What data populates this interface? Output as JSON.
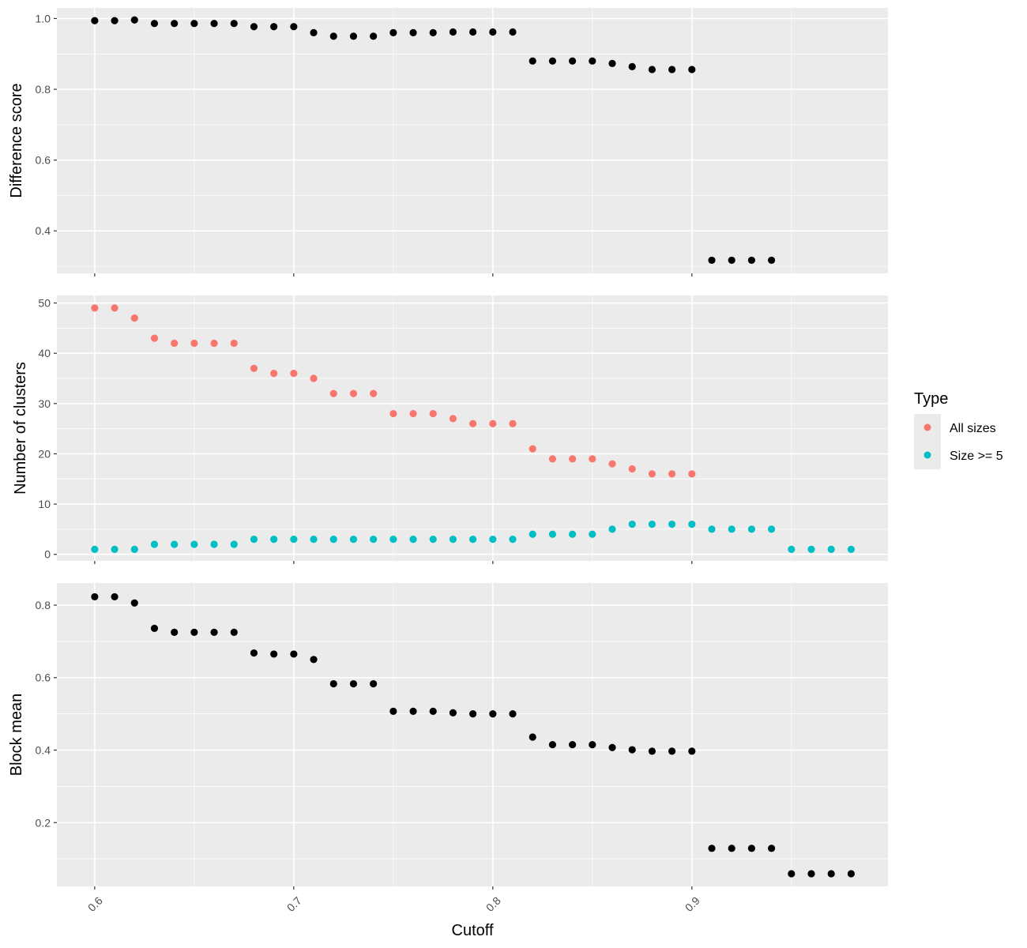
{
  "chart_data": {
    "type": "scatter",
    "facets": 3,
    "xlabel": "Cutoff",
    "x_ticks": [
      "0.6",
      "0.7",
      "0.8",
      "0.9"
    ],
    "x_tick_values": [
      0.6,
      0.7,
      0.8,
      0.9
    ],
    "xlim": [
      0.581,
      0.9985
    ],
    "grid": true,
    "background": "#ebebeb",
    "legend": {
      "title": "Type",
      "placement": "right",
      "entries": [
        {
          "label": "All sizes",
          "color": "#F8766D"
        },
        {
          "label": "Size >= 5",
          "color": "#00BFC4"
        }
      ]
    },
    "panels": [
      {
        "ylabel": "Difference score",
        "ylim": [
          0.28,
          1.03
        ],
        "y_ticks": [
          "0.4",
          "0.6",
          "0.8",
          "1.0"
        ],
        "y_tick_values": [
          0.4,
          0.6,
          0.8,
          1.0
        ],
        "series": [
          {
            "color": "#000000",
            "x": [
              0.6,
              0.61,
              0.62,
              0.63,
              0.64,
              0.65,
              0.66,
              0.67,
              0.68,
              0.69,
              0.7,
              0.71,
              0.72,
              0.73,
              0.74,
              0.75,
              0.76,
              0.77,
              0.78,
              0.79,
              0.8,
              0.81,
              0.82,
              0.83,
              0.84,
              0.85,
              0.86,
              0.87,
              0.88,
              0.89,
              0.9,
              0.91,
              0.92,
              0.93,
              0.94
            ],
            "y": [
              0.994,
              0.994,
              0.996,
              0.986,
              0.986,
              0.986,
              0.986,
              0.986,
              0.977,
              0.977,
              0.977,
              0.96,
              0.95,
              0.95,
              0.95,
              0.96,
              0.96,
              0.96,
              0.962,
              0.962,
              0.962,
              0.962,
              0.88,
              0.88,
              0.88,
              0.88,
              0.873,
              0.864,
              0.856,
              0.856,
              0.856,
              0.317,
              0.317,
              0.317,
              0.317
            ]
          }
        ]
      },
      {
        "ylabel": "Number of clusters",
        "ylim": [
          -1.3,
          51.5
        ],
        "y_ticks": [
          "0",
          "10",
          "20",
          "30",
          "40",
          "50"
        ],
        "y_tick_values": [
          0,
          10,
          20,
          30,
          40,
          50
        ],
        "series": [
          {
            "name": "All sizes",
            "color": "#F8766D",
            "x": [
              0.6,
              0.61,
              0.62,
              0.63,
              0.64,
              0.65,
              0.66,
              0.67,
              0.68,
              0.69,
              0.7,
              0.71,
              0.72,
              0.73,
              0.74,
              0.75,
              0.76,
              0.77,
              0.78,
              0.79,
              0.8,
              0.81,
              0.82,
              0.83,
              0.84,
              0.85,
              0.86,
              0.87,
              0.88,
              0.89,
              0.9
            ],
            "y": [
              49,
              49,
              47,
              43,
              42,
              42,
              42,
              42,
              37,
              36,
              36,
              35,
              32,
              32,
              32,
              28,
              28,
              28,
              27,
              26,
              26,
              26,
              21,
              19,
              19,
              19,
              18,
              17,
              16,
              16,
              16
            ]
          },
          {
            "name": "Size >= 5",
            "color": "#00BFC4",
            "x": [
              0.6,
              0.61,
              0.62,
              0.63,
              0.64,
              0.65,
              0.66,
              0.67,
              0.68,
              0.69,
              0.7,
              0.71,
              0.72,
              0.73,
              0.74,
              0.75,
              0.76,
              0.77,
              0.78,
              0.79,
              0.8,
              0.81,
              0.82,
              0.83,
              0.84,
              0.85,
              0.86,
              0.87,
              0.88,
              0.89,
              0.9,
              0.91,
              0.92,
              0.93,
              0.94,
              0.95,
              0.96,
              0.97,
              0.98
            ],
            "y": [
              1,
              1,
              1,
              2,
              2,
              2,
              2,
              2,
              3,
              3,
              3,
              3,
              3,
              3,
              3,
              3,
              3,
              3,
              3,
              3,
              3,
              3,
              4,
              4,
              4,
              4,
              5,
              6,
              6,
              6,
              6,
              5,
              5,
              5,
              5,
              1,
              1,
              1,
              1
            ]
          }
        ]
      },
      {
        "ylabel": "Block mean",
        "ylim": [
          0.024,
          0.861
        ],
        "y_ticks": [
          "0.2",
          "0.4",
          "0.6",
          "0.8"
        ],
        "y_tick_values": [
          0.2,
          0.4,
          0.6,
          0.8
        ],
        "series": [
          {
            "color": "#000000",
            "x": [
              0.6,
              0.61,
              0.62,
              0.63,
              0.64,
              0.65,
              0.66,
              0.67,
              0.68,
              0.69,
              0.7,
              0.71,
              0.72,
              0.73,
              0.74,
              0.75,
              0.76,
              0.77,
              0.78,
              0.79,
              0.8,
              0.81,
              0.82,
              0.83,
              0.84,
              0.85,
              0.86,
              0.87,
              0.88,
              0.89,
              0.9,
              0.91,
              0.92,
              0.93,
              0.94,
              0.95,
              0.96,
              0.97,
              0.98
            ],
            "y": [
              0.823,
              0.823,
              0.806,
              0.736,
              0.725,
              0.725,
              0.725,
              0.725,
              0.668,
              0.665,
              0.665,
              0.65,
              0.583,
              0.583,
              0.583,
              0.507,
              0.507,
              0.507,
              0.503,
              0.5,
              0.5,
              0.5,
              0.436,
              0.415,
              0.415,
              0.415,
              0.407,
              0.401,
              0.397,
              0.397,
              0.397,
              0.129,
              0.129,
              0.129,
              0.129,
              0.059,
              0.059,
              0.059,
              0.059
            ]
          }
        ]
      }
    ]
  }
}
